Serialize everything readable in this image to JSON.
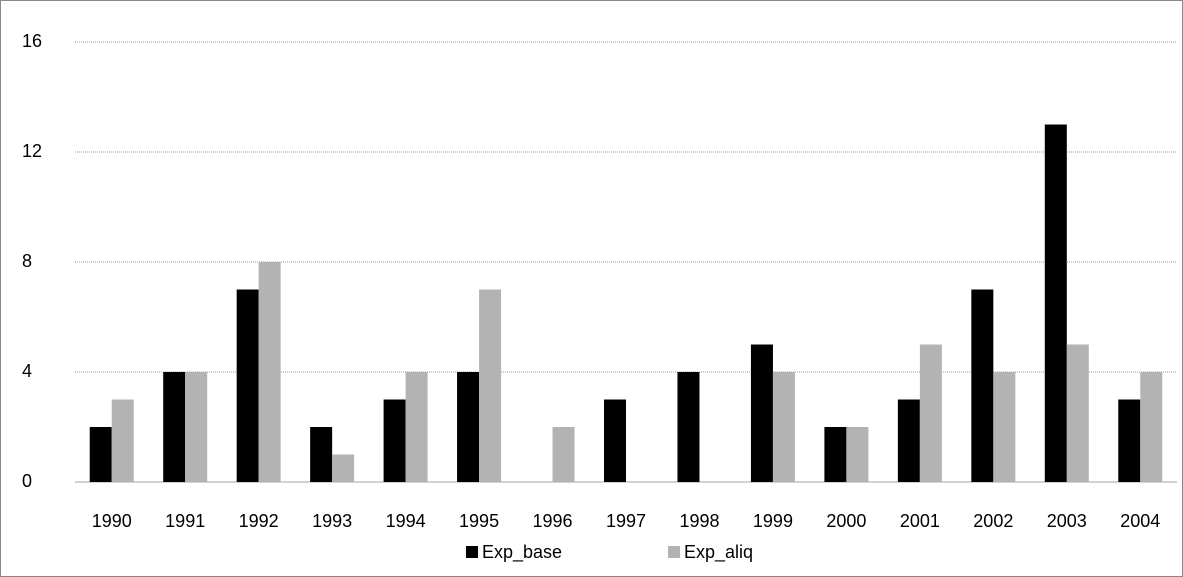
{
  "chart_data": {
    "type": "bar",
    "categories": [
      "1990",
      "1991",
      "1992",
      "1993",
      "1994",
      "1995",
      "1996",
      "1997",
      "1998",
      "1999",
      "2000",
      "2001",
      "2002",
      "2003",
      "2004"
    ],
    "series": [
      {
        "name": "Exp_base",
        "color": "#000000",
        "values": [
          2,
          4,
          7,
          2,
          3,
          4,
          0,
          3,
          4,
          5,
          2,
          3,
          7,
          13,
          3
        ]
      },
      {
        "name": "Exp_aliq",
        "color": "#b3b3b3",
        "values": [
          3,
          4,
          8,
          1,
          4,
          7,
          2,
          0,
          0,
          4,
          2,
          5,
          4,
          5,
          4
        ]
      }
    ],
    "ylim": [
      0,
      16
    ],
    "yticks": [
      0,
      4,
      8,
      12,
      16
    ],
    "grid": true,
    "legend": "bottom"
  }
}
